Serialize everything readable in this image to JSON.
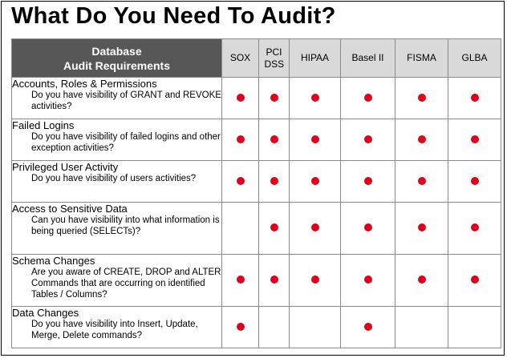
{
  "title": "What Do You Need To Audit?",
  "colors": {
    "header_dark": "#575757",
    "header_light": "#d9d9d9",
    "dot": "#e0001b"
  },
  "table": {
    "corner_header": [
      "Database",
      "Audit Requirements"
    ],
    "columns": [
      "SOX",
      "PCI DSS",
      "HIPAA",
      "Basel II",
      "FISMA",
      "GLBA"
    ],
    "rows": [
      {
        "title": "Accounts, Roles & Permissions",
        "question": "Do you have visibility of GRANT and REVOKE activities?",
        "checks": [
          true,
          true,
          true,
          true,
          true,
          true
        ]
      },
      {
        "title": "Failed Logins",
        "question": "Do you  have visibility of failed logins and other exception activities?",
        "checks": [
          true,
          true,
          true,
          true,
          true,
          true
        ]
      },
      {
        "title": "Privileged User Activity",
        "question": "Do you  have visibility of users activities?",
        "checks": [
          true,
          true,
          true,
          true,
          true,
          true
        ]
      },
      {
        "title": "Access to Sensitive Data",
        "question": "Can you  have visibility into  what information is being queried (SELECTs)?",
        "checks": [
          false,
          true,
          true,
          true,
          true,
          true
        ]
      },
      {
        "title": "Schema Changes",
        "question": "Are you aware  of CREATE, DROP and ALTER Commands that are occurring on identified Tables / Columns?",
        "checks": [
          true,
          true,
          true,
          true,
          true,
          true
        ]
      },
      {
        "title": "Data Changes",
        "question": "Do you  have visibility into Insert, Update, Merge, Delete commands?",
        "checks": [
          true,
          false,
          false,
          true,
          false,
          false
        ]
      }
    ]
  }
}
